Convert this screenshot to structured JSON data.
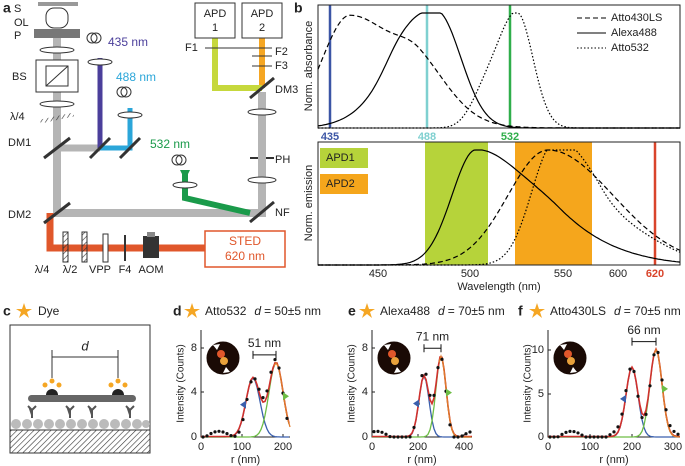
{
  "panel_a": {
    "label": "a",
    "microscope": [
      "S",
      "OL",
      "P"
    ],
    "optics": {
      "bs": "BS",
      "qwp": "λ/4",
      "dm1": "DM1",
      "dm2": "DM2",
      "f1": "F1",
      "f2": "F2",
      "f3": "F3",
      "dm3": "DM3",
      "ph": "PH",
      "nf": "NF"
    },
    "lasers": [
      "435 nm",
      "488 nm",
      "532 nm"
    ],
    "apd1": [
      "APD",
      "1"
    ],
    "apd2": [
      "APD",
      "2"
    ],
    "sted": [
      "STED",
      "620 nm"
    ],
    "sted_path": [
      "λ/4",
      "λ/2",
      "VPP",
      "F4",
      "AOM"
    ]
  },
  "panel_b": {
    "label": "b",
    "absorbance_axis": "Norm. absorbance",
    "emission_axis": "Norm. emission",
    "x_axis": "Wavelength (nm)",
    "legend": [
      "Atto430LS",
      "Alexa488",
      "Atto532"
    ],
    "line_labels": [
      "435",
      "488",
      "532",
      "620"
    ],
    "x_ticks": [
      "450",
      "500",
      "550",
      "600"
    ],
    "bands": [
      "APD1",
      "APD2"
    ]
  },
  "panel_c": {
    "label": "c",
    "legend": "Dye",
    "distance": "d"
  },
  "distance_panels": [
    {
      "label": "d",
      "dye": "Atto532",
      "symbol": "d",
      "distance": "= 50±5 nm",
      "y_axis": "Intensity (Counts)",
      "x_axis": "r (nm)",
      "y_ticks": [
        "0",
        "4",
        "8"
      ],
      "x_ticks": [
        "0",
        "100",
        "200"
      ],
      "separation": "51 nm"
    },
    {
      "label": "e",
      "dye": "Alexa488",
      "symbol": "d",
      "distance": "= 70±5 nm",
      "y_axis": "Intensity (Counts)",
      "x_axis": "r (nm)",
      "y_ticks": [
        "0",
        "4",
        "8"
      ],
      "x_ticks": [
        "0",
        "200",
        "400"
      ],
      "separation": "71 nm"
    },
    {
      "label": "f",
      "dye": "Atto430LS",
      "symbol": "d",
      "distance": "= 70±5 nm",
      "y_axis": "Intensity (Counts)",
      "x_axis": "r (nm)",
      "y_ticks": [
        "0",
        "5",
        "10"
      ],
      "x_ticks": [
        "0",
        "100",
        "200",
        "300"
      ],
      "separation": "66 nm"
    }
  ]
}
